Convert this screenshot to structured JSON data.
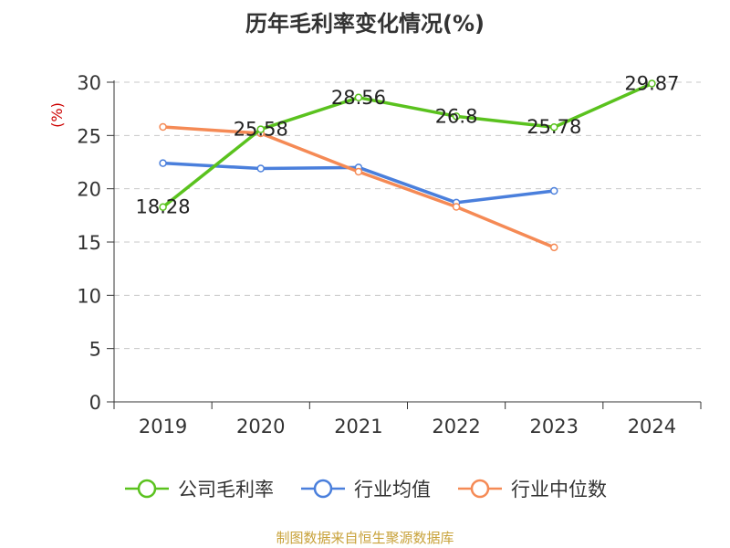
{
  "chart_data": {
    "type": "line",
    "title": "历年毛利率变化情况(%)",
    "ylabel": "(%)",
    "xlabel": "",
    "categories": [
      "2019",
      "2020",
      "2021",
      "2022",
      "2023",
      "2024"
    ],
    "ylim": [
      0,
      30
    ],
    "yticks": [
      0,
      5,
      10,
      15,
      20,
      25,
      30
    ],
    "grid": true,
    "legend_position": "bottom",
    "series": [
      {
        "name": "公司毛利率",
        "color": "#5ac21e",
        "values": [
          18.28,
          25.58,
          28.56,
          26.8,
          25.78,
          29.87
        ],
        "labels": [
          "18.28",
          "25.58",
          "28.56",
          "26.8",
          "25.78",
          "29.87"
        ]
      },
      {
        "name": "行业均值",
        "color": "#4a7fdc",
        "values": [
          22.4,
          21.9,
          22.0,
          18.7,
          19.8,
          null
        ]
      },
      {
        "name": "行业中位数",
        "color": "#f58a55",
        "values": [
          25.8,
          25.2,
          21.6,
          18.3,
          14.5,
          null
        ]
      }
    ]
  },
  "footer": {
    "source": "制图数据来自恒生聚源数据库"
  }
}
